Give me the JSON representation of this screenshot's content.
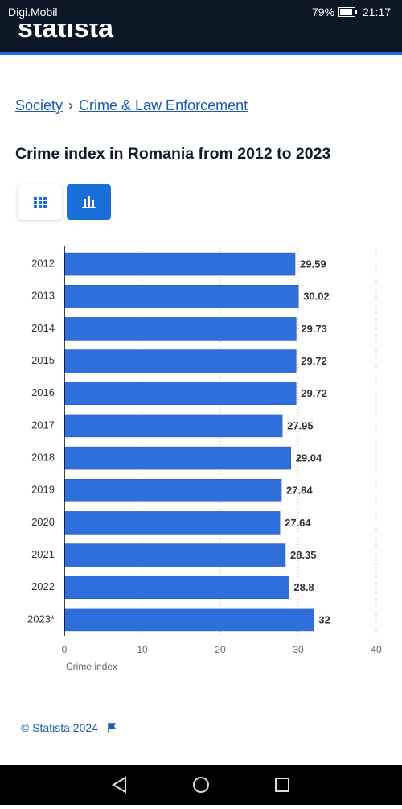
{
  "status_bar": {
    "carrier": "Digi.Mobil",
    "battery": "79%",
    "time": "21:17"
  },
  "header": {
    "logo": "statista"
  },
  "breadcrumb": {
    "items": [
      "Society",
      "Crime & Law Enforcement"
    ],
    "separator": "›"
  },
  "title": "Crime index in Romania from 2012 to 2023",
  "chart_data": {
    "type": "bar",
    "orientation": "horizontal",
    "categories": [
      "2012",
      "2013",
      "2014",
      "2015",
      "2016",
      "2017",
      "2018",
      "2019",
      "2020",
      "2021",
      "2022",
      "2023*"
    ],
    "values": [
      29.59,
      30.02,
      29.73,
      29.72,
      29.72,
      27.95,
      29.04,
      27.84,
      27.64,
      28.35,
      28.8,
      32
    ],
    "color": "#2f6fdc",
    "x_label": "Crime index",
    "xlim": [
      0,
      40
    ],
    "xticks": [
      0,
      10,
      20,
      30,
      40
    ],
    "grid": true
  },
  "footer": {
    "copyright": "© Statista 2024"
  }
}
